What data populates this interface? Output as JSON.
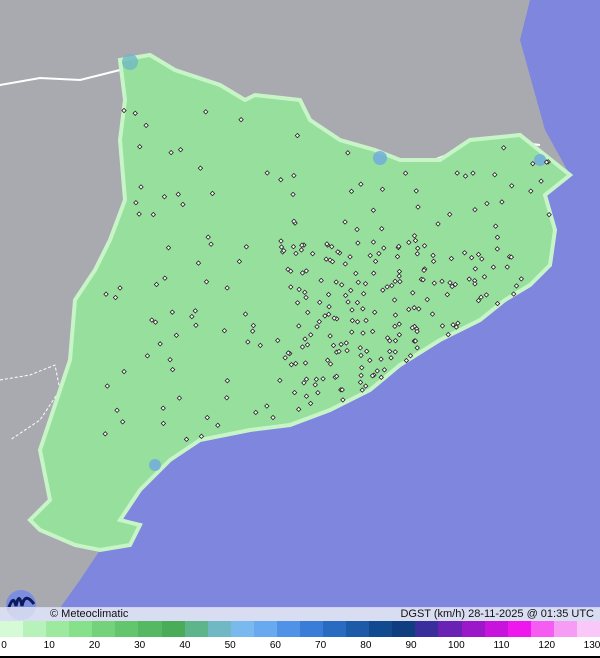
{
  "map": {
    "sea_color": "#7f86de",
    "land_color": "#a8a9ae",
    "region_color": "#95e09a",
    "station_count_visible": "many"
  },
  "infobar": {
    "credit": "© Meteoclimatic",
    "title": "DGST (km/h)  28-11-2025 @ 01:35 UTC"
  },
  "legend": {
    "ticks": [
      "0",
      "10",
      "20",
      "30",
      "40",
      "50",
      "60",
      "70",
      "80",
      "90",
      "100",
      "110",
      "120",
      "130"
    ],
    "colors": [
      "#d4fad6",
      "#b8f2bb",
      "#9ce99f",
      "#87e18a",
      "#74d37a",
      "#64c66c",
      "#56b862",
      "#4aab58",
      "#5eb58c",
      "#6fb8c4",
      "#7ab9ee",
      "#69a9f0",
      "#4f92e6",
      "#3a7dd8",
      "#2a6bc2",
      "#1d5aa8",
      "#124a90",
      "#0e3d80",
      "#3a2e9c",
      "#6a22b4",
      "#9a18c8",
      "#c813dc",
      "#ee18ee",
      "#f55cf2",
      "#f79cf4",
      "#f9c8f8"
    ]
  }
}
